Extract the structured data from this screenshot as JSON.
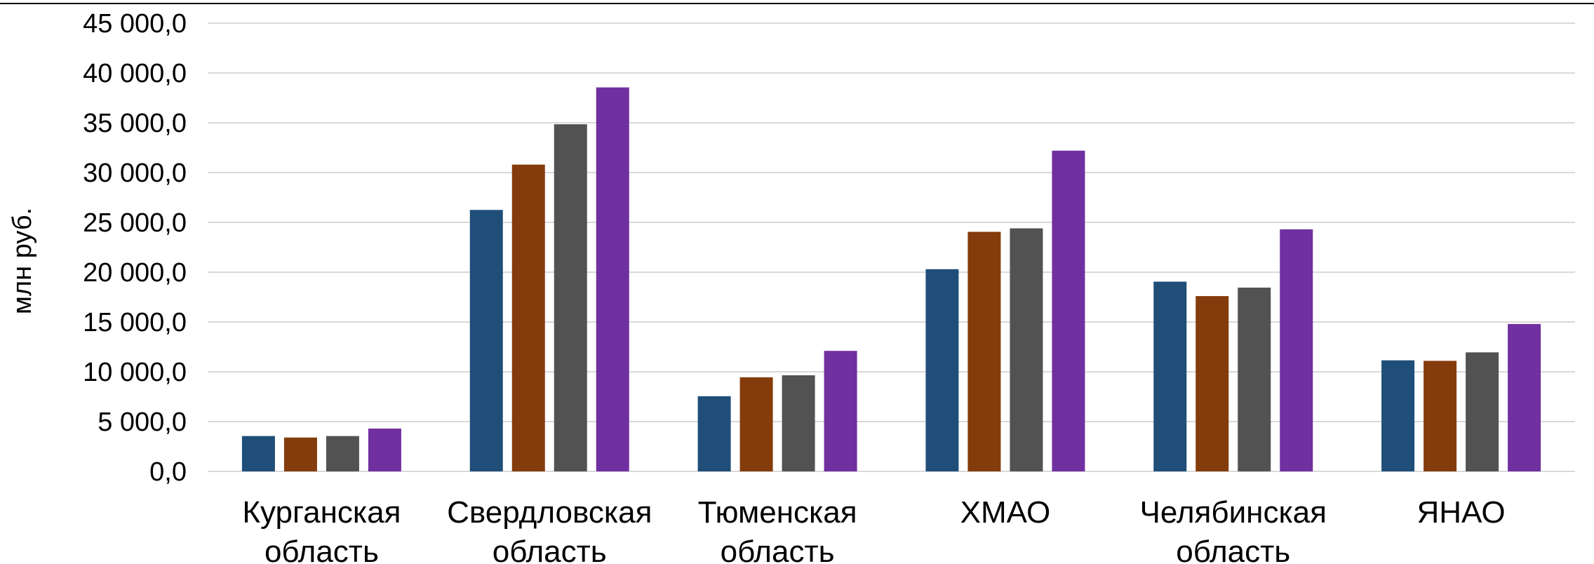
{
  "chart_data": {
    "type": "bar",
    "ylabel": "млн руб.",
    "ylim": [
      0,
      45000
    ],
    "ytick_step": 5000,
    "ytick_labels": [
      "0,0",
      "5 000,0",
      "10 000,0",
      "15 000,0",
      "20 000,0",
      "25 000,0",
      "30 000,0",
      "35 000,0",
      "40 000,0",
      "45 000,0"
    ],
    "categories": [
      [
        "Курганская",
        "область"
      ],
      [
        "Свердловская",
        "область"
      ],
      [
        "Тюменская",
        "область"
      ],
      [
        "ХМАО"
      ],
      [
        "Челябинская",
        "область"
      ],
      [
        "ЯНАО"
      ]
    ],
    "series": [
      {
        "color": "#1f4e79",
        "values": [
          3550,
          26250,
          7550,
          20300,
          19050,
          11150
        ]
      },
      {
        "color": "#843c0c",
        "values": [
          3400,
          30800,
          9450,
          24050,
          17600,
          11100
        ]
      },
      {
        "color": "#525252",
        "values": [
          3550,
          34850,
          9650,
          24400,
          18450,
          11950
        ]
      },
      {
        "color": "#7030a0",
        "values": [
          4300,
          38550,
          12100,
          32200,
          24300,
          14800
        ]
      }
    ],
    "grid": true,
    "legend": "none"
  }
}
